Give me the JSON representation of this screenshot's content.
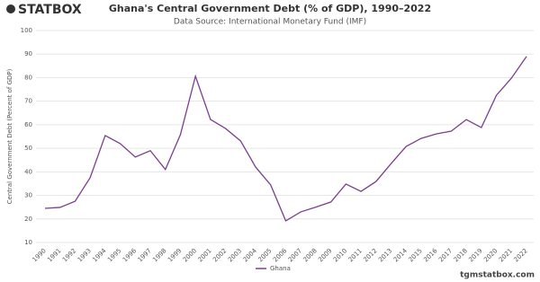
{
  "logo": "STATBOX",
  "watermark": "tgmstatbox.com",
  "chart_data": {
    "type": "line",
    "title": "Ghana's Central Government Debt (% of GDP), 1990–2022",
    "subtitle": "Data Source: International Monetary Fund (IMF)",
    "y_label": "Central Government Debt (Percent of GDP)",
    "categories": [
      "1990",
      "1991",
      "1992",
      "1993",
      "1994",
      "1995",
      "1996",
      "1997",
      "1998",
      "1999",
      "2000",
      "2001",
      "2002",
      "2003",
      "2004",
      "2005",
      "2006",
      "2007",
      "2008",
      "2009",
      "2010",
      "2011",
      "2012",
      "2013",
      "2014",
      "2015",
      "2016",
      "2017",
      "2018",
      "2019",
      "2020",
      "2021",
      "2022"
    ],
    "series": [
      {
        "name": "Ghana",
        "color": "#7b3f8c",
        "values": [
          24.5,
          24.9,
          27.5,
          37.5,
          55.4,
          52,
          46.3,
          49,
          41,
          55.8,
          80.6,
          62.2,
          58.4,
          53.1,
          42,
          34.4,
          19.2,
          23,
          25,
          27.2,
          34.8,
          31.7,
          35.9,
          43.5,
          50.8,
          54.2,
          56.1,
          57.3,
          62.2,
          58.8,
          72.5,
          79.8,
          89
        ]
      }
    ],
    "ylim": [
      10,
      100
    ],
    "yticks": [
      10,
      20,
      30,
      40,
      50,
      60,
      70,
      80,
      90,
      100
    ],
    "grid": true,
    "legend": "bottom"
  }
}
